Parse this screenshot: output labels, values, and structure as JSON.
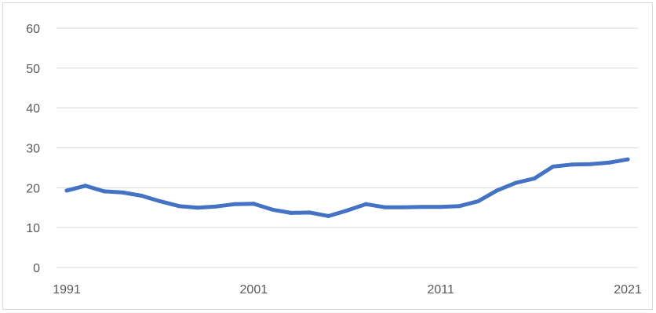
{
  "chart_data": {
    "type": "line",
    "title": "",
    "xlabel": "",
    "ylabel": "",
    "x": [
      1991,
      1992,
      1993,
      1994,
      1995,
      1996,
      1997,
      1998,
      1999,
      2000,
      2001,
      2002,
      2003,
      2004,
      2005,
      2006,
      2007,
      2008,
      2009,
      2010,
      2011,
      2012,
      2013,
      2014,
      2015,
      2016,
      2017,
      2018,
      2019,
      2020,
      2021
    ],
    "series": [
      {
        "values": [
          19.3,
          20.5,
          19.1,
          18.8,
          18.0,
          16.6,
          15.4,
          15.0,
          15.3,
          15.9,
          16.0,
          14.5,
          13.7,
          13.8,
          12.9,
          14.3,
          15.9,
          15.1,
          15.1,
          15.2,
          15.2,
          15.4,
          16.6,
          19.3,
          21.2,
          22.3,
          25.3,
          25.8,
          25.9,
          26.3,
          27.1
        ],
        "color": "#4472c4"
      }
    ],
    "ylim": [
      0,
      60
    ],
    "y_ticks": [
      "0",
      "10",
      "20",
      "30",
      "40",
      "50",
      "60"
    ],
    "x_tick_labels": [
      "1991",
      "2001",
      "2011",
      "2021"
    ],
    "grid": "horizontal",
    "legend": "none"
  }
}
